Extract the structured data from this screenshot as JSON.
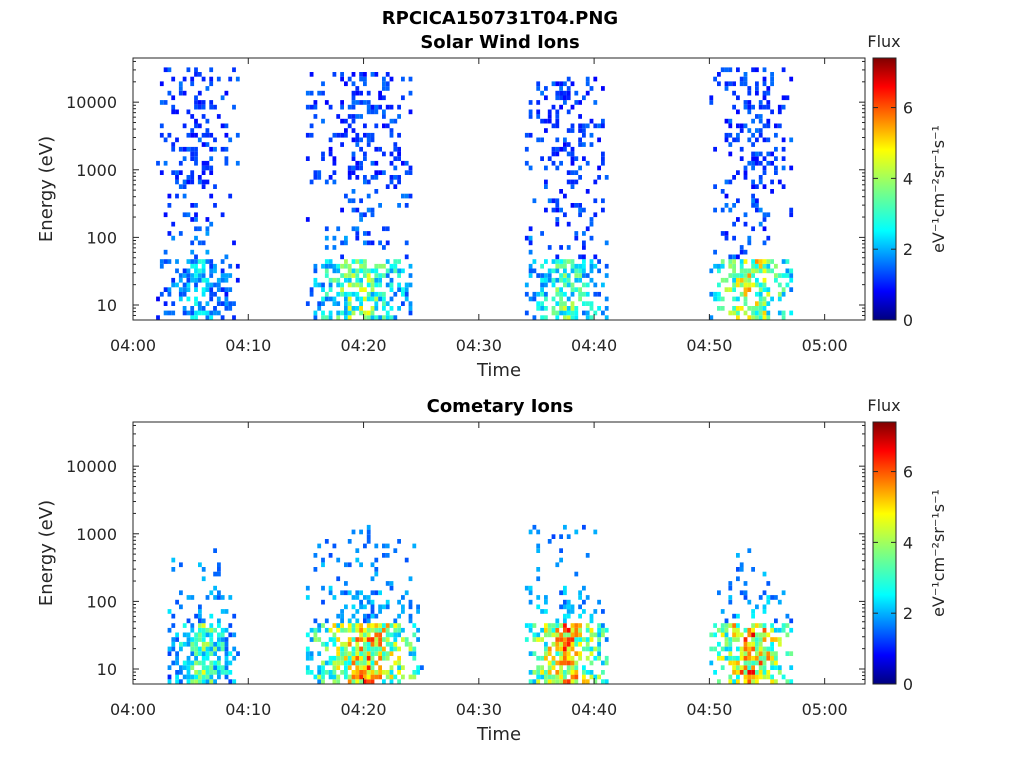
{
  "figure_title": "RPCICA150731T04.PNG",
  "chart_data": [
    {
      "type": "heatmap",
      "title": "Solar Wind Ions",
      "xlabel": "Time",
      "ylabel": "Energy (eV)",
      "x_ticks": [
        "04:00",
        "04:10",
        "04:20",
        "04:30",
        "04:40",
        "04:50",
        "05:00"
      ],
      "xlim_minutes": [
        0,
        63.5
      ],
      "y_ticks": [
        "10",
        "100",
        "1000",
        "10000"
      ],
      "y_scale": "log",
      "ylim": [
        6,
        45000
      ],
      "colorbar": {
        "label": "Flux",
        "unit": "eV⁻¹cm⁻²sr⁻¹s⁻¹",
        "ticks": [
          "0",
          "2",
          "4",
          "6"
        ],
        "range": [
          0,
          7.4
        ]
      },
      "bursts": [
        {
          "start": "04:02",
          "end": "04:09",
          "energy_max": 35000,
          "peak_flux": 3.2
        },
        {
          "start": "04:15",
          "end": "04:24",
          "energy_max": 28000,
          "peak_flux": 5.0
        },
        {
          "start": "04:34",
          "end": "04:41",
          "energy_max": 22000,
          "peak_flux": 4.5
        },
        {
          "start": "04:50",
          "end": "04:57",
          "energy_max": 35000,
          "peak_flux": 5.8
        }
      ]
    },
    {
      "type": "heatmap",
      "title": "Cometary Ions",
      "xlabel": "Time",
      "ylabel": "Energy (eV)",
      "x_ticks": [
        "04:00",
        "04:10",
        "04:20",
        "04:30",
        "04:40",
        "04:50",
        "05:00"
      ],
      "xlim_minutes": [
        0,
        63.5
      ],
      "y_ticks": [
        "10",
        "100",
        "1000",
        "10000"
      ],
      "y_scale": "log",
      "ylim": [
        6,
        45000
      ],
      "colorbar": {
        "label": "Flux",
        "unit": "eV⁻¹cm⁻²sr⁻¹s⁻¹",
        "ticks": [
          "0",
          "2",
          "4",
          "6"
        ],
        "range": [
          0,
          7.4
        ]
      },
      "bursts": [
        {
          "start": "04:03",
          "end": "04:09",
          "energy_max": 600,
          "peak_flux": 4.6
        },
        {
          "start": "04:15",
          "end": "04:25",
          "energy_max": 1300,
          "peak_flux": 6.6
        },
        {
          "start": "04:34",
          "end": "04:41",
          "energy_max": 1400,
          "peak_flux": 6.8
        },
        {
          "start": "04:50",
          "end": "04:57",
          "energy_max": 600,
          "peak_flux": 7.0
        }
      ]
    }
  ]
}
